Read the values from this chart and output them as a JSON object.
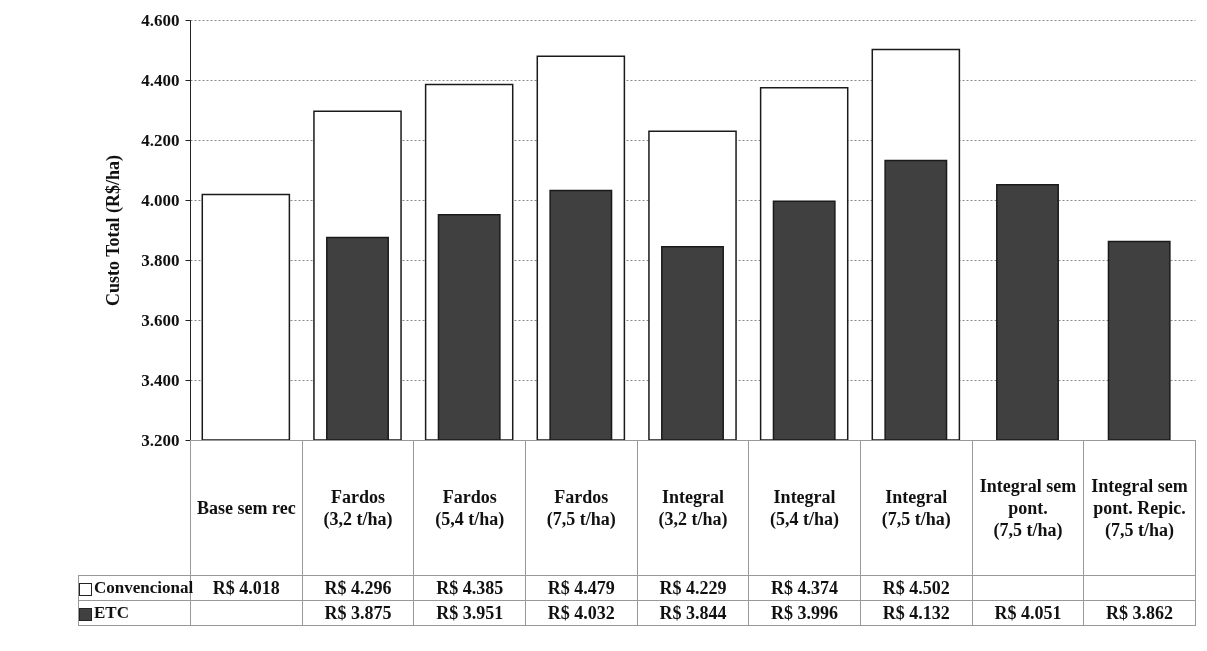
{
  "chart_data": {
    "type": "bar",
    "ylabel": "Custo Total (R$/ha)",
    "categories": [
      "Base sem rec",
      "Fardos (3,2 t/ha)",
      "Fardos (5,4 t/ha)",
      "Fardos (7,5 t/ha)",
      "Integral (3,2 t/ha)",
      "Integral (5,4 t/ha)",
      "Integral (7,5 t/ha)",
      "Integral sem pont. (7,5 t/ha)",
      "Integral sem pont. Repic. (7,5 t/ha)"
    ],
    "series": [
      {
        "name": "Convencional",
        "color": "#ffffff",
        "values": [
          4018,
          4296,
          4385,
          4479,
          4229,
          4374,
          4502,
          null,
          null
        ],
        "value_labels": [
          "R$ 4.018",
          "R$ 4.296",
          "R$ 4.385",
          "R$ 4.479",
          "R$ 4.229",
          "R$ 4.374",
          "R$ 4.502",
          null,
          null
        ]
      },
      {
        "name": "ETC",
        "color": "#404040",
        "values": [
          null,
          3875,
          3951,
          4032,
          3844,
          3996,
          4132,
          4051,
          3862
        ],
        "value_labels": [
          null,
          "R$ 3.875",
          "R$ 3.951",
          "R$ 4.032",
          "R$ 3.844",
          "R$ 3.996",
          "R$ 4.132",
          "R$ 4.051",
          "R$ 3.862"
        ]
      }
    ],
    "ylim": [
      3200,
      4600
    ],
    "yticks": [
      {
        "value": 3200,
        "label": "3.200"
      },
      {
        "value": 3400,
        "label": "3.400"
      },
      {
        "value": 3600,
        "label": "3.600"
      },
      {
        "value": 3800,
        "label": "3.800"
      },
      {
        "value": 4000,
        "label": "4.000"
      },
      {
        "value": 4200,
        "label": "4.200"
      },
      {
        "value": 4400,
        "label": "4.400"
      },
      {
        "value": 4600,
        "label": "4.600"
      }
    ],
    "grid": "y",
    "legend": "bottom"
  }
}
